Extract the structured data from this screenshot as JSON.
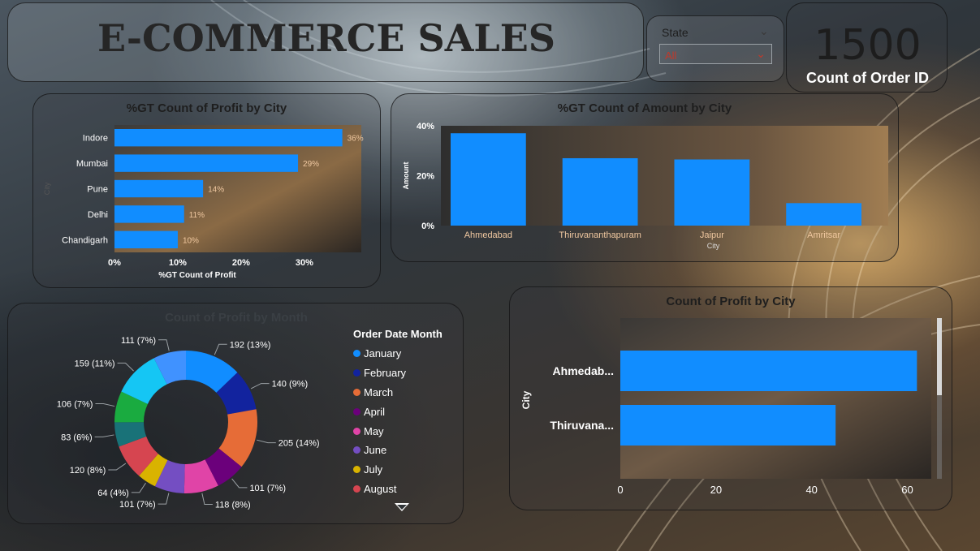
{
  "header": {
    "title": "E-COMMERCE SALES"
  },
  "slicer": {
    "label": "State",
    "value": "All"
  },
  "kpi": {
    "value": "1500",
    "label": "Count of Order ID"
  },
  "colors": {
    "bar": "#118DFF"
  },
  "icons": {
    "slicer_chevron": "chevron-down-icon",
    "legend_more": "triangle-down-icon"
  },
  "chart_data": [
    {
      "type": "bar",
      "orientation": "horizontal",
      "title": "%GT Count of Profit by City",
      "categories": [
        "Indore",
        "Mumbai",
        "Pune",
        "Delhi",
        "Chandigarh"
      ],
      "values": [
        36,
        29,
        14,
        11,
        10
      ],
      "data_labels": [
        "36%",
        "29%",
        "14%",
        "11%",
        "10%"
      ],
      "xlabel": "%GT Count of Profit",
      "ylabel": "City",
      "xticks": [
        "0%",
        "10%",
        "20%",
        "30%"
      ],
      "xlim": [
        0,
        39
      ]
    },
    {
      "type": "bar",
      "orientation": "vertical",
      "title": "%GT Count of Amount by City",
      "categories": [
        "Ahmedabad",
        "Thiruvananthapuram",
        "Jaipur",
        "Amritsar"
      ],
      "values": [
        37,
        27,
        26.5,
        9
      ],
      "xlabel": "City",
      "ylabel": "Amount",
      "yticks": [
        "0%",
        "20%",
        "40%"
      ],
      "ylim": [
        0,
        40
      ]
    },
    {
      "type": "pie",
      "donut": true,
      "title": "Count of Profit by Month",
      "legend_title": "Order Date Month",
      "slices": [
        {
          "name": "January",
          "value": 192,
          "label": "192 (13%)",
          "color": "#118DFF"
        },
        {
          "name": "February",
          "value": 140,
          "label": "140 (9%)",
          "color": "#12239E"
        },
        {
          "name": "March",
          "value": 205,
          "label": "205 (14%)",
          "color": "#E66C37"
        },
        {
          "name": "April",
          "value": 101,
          "label": "101 (7%)",
          "color": "#6B007B"
        },
        {
          "name": "May",
          "value": 118,
          "label": "118 (8%)",
          "color": "#E044A7"
        },
        {
          "name": "June",
          "value": 101,
          "label": "101 (7%)",
          "color": "#744EC2"
        },
        {
          "name": "July",
          "value": 64,
          "label": "64 (4%)",
          "color": "#D9B300"
        },
        {
          "name": "August",
          "value": 120,
          "label": "120 (8%)",
          "color": "#D64550"
        },
        {
          "name": "",
          "value": 83,
          "label": "83 (6%)",
          "color": "#197278"
        },
        {
          "name": "",
          "value": 106,
          "label": "106 (7%)",
          "color": "#1AAB40"
        },
        {
          "name": "",
          "value": 159,
          "label": "159 (11%)",
          "color": "#15C6F4"
        },
        {
          "name": "",
          "value": 111,
          "label": "111 (7%)",
          "color": "#4092FF"
        }
      ],
      "legend_items": [
        "January",
        "February",
        "March",
        "April",
        "May",
        "June",
        "July",
        "August"
      ]
    },
    {
      "type": "bar",
      "orientation": "horizontal",
      "title": "Count of Profit by City",
      "categories": [
        "Ahmedab...",
        "Thiruvana..."
      ],
      "values": [
        62,
        45
      ],
      "ylabel": "City",
      "xticks": [
        "0",
        "20",
        "40",
        "60"
      ],
      "xlim": [
        0,
        65
      ]
    }
  ]
}
